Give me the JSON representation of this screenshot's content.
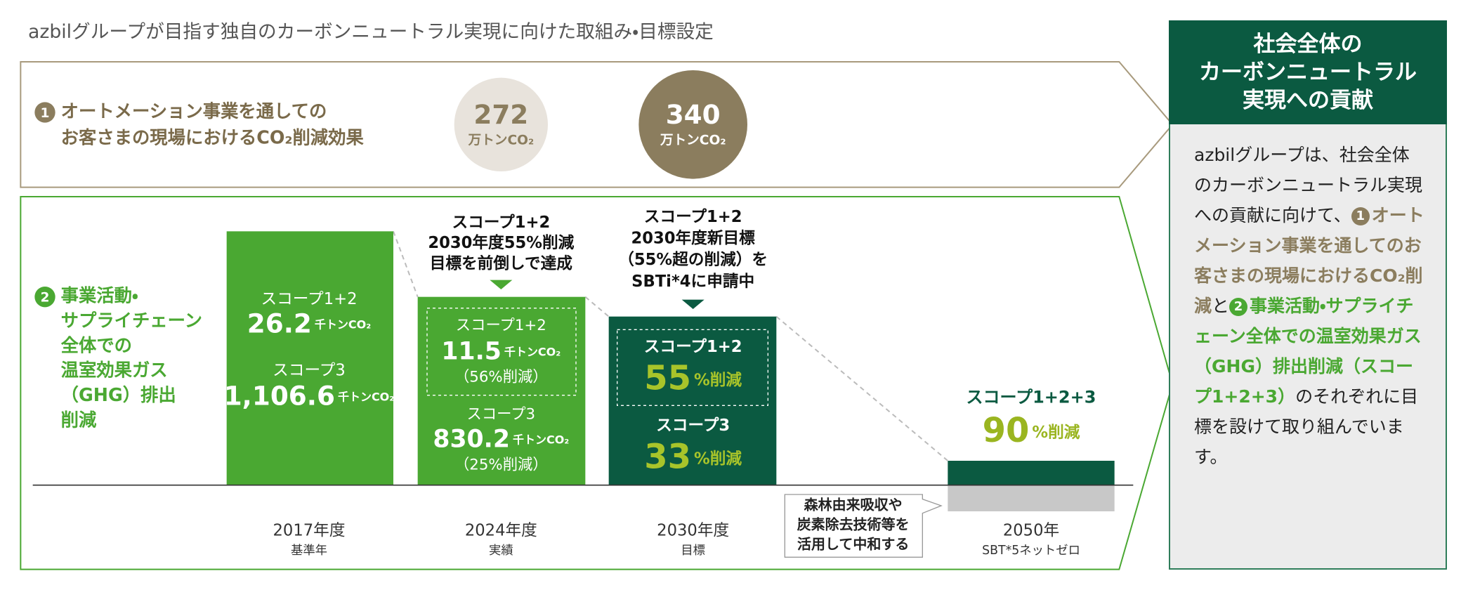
{
  "title": "azbilグループが目指す独自のカーボンニュートラル実現に向けた取組み・目標設定",
  "section1": {
    "badge": "1",
    "label": [
      "オートメーション事業を通しての",
      "お客さまの現場におけるCO₂削減効果"
    ],
    "results": [
      {
        "value": "272",
        "unit": "万トンCO₂"
      },
      {
        "value": "340",
        "unit": "万トンCO₂"
      }
    ]
  },
  "section2": {
    "badge": "2",
    "label": [
      "事業活動・",
      "サプライチェーン",
      "全体での",
      "温室効果ガス",
      "（GHG）排出",
      "削減"
    ]
  },
  "columns": [
    {
      "period": "2017年度",
      "note": "基準年",
      "scope12": {
        "label": "スコープ1+2",
        "value": "26.2",
        "unit": "千トンCO₂"
      },
      "scope3": {
        "label": "スコープ3",
        "value": "1,106.6",
        "unit": "千トンCO₂"
      }
    },
    {
      "period": "2024年度",
      "note": "実績",
      "callout": [
        "スコープ1+2",
        "2030年度55%削減",
        "目標を前倒しで達成"
      ],
      "scope12": {
        "label": "スコープ1+2",
        "value": "11.5",
        "unit": "千トンCO₂",
        "reduction": "（56%削減）"
      },
      "scope3": {
        "label": "スコープ3",
        "value": "830.2",
        "unit": "千トンCO₂",
        "reduction": "（25%削減）"
      }
    },
    {
      "period": "2030年度",
      "note": "目標",
      "callout": [
        "スコープ1+2",
        "2030年度新目標",
        "（55%超の削減）を",
        "SBTi*4に申請中"
      ],
      "scope12": {
        "label": "スコープ1+2",
        "value": "55",
        "unit": "%削減"
      },
      "scope3": {
        "label": "スコープ3",
        "value": "33",
        "unit": "%削減"
      }
    },
    {
      "period": "2050年",
      "note": "SBT*5ネットゼロ",
      "scope123": {
        "label": "スコープ1+2+3",
        "value": "90",
        "unit": "%削減"
      }
    }
  ],
  "offset_note": [
    "森林由来吸収や",
    "炭素除去技術等を",
    "活用して中和する"
  ],
  "panel": {
    "heading": [
      "社会全体の",
      "カーボンニュートラル",
      "実現への貢献"
    ],
    "intro": "azbilグループは、社会全体のカーボンニュートラル実現への貢献に向けて、",
    "item1": "オートメーション事業を通してのお客さまの現場におけるCO₂削減",
    "joiner": "と",
    "item2": "事業活動・サプライチェーン全体での温室効果ガス（GHG）排出削減（スコープ1+2+3）",
    "outro": "のそれぞれに目標を設けて取り組んでいます。"
  }
}
